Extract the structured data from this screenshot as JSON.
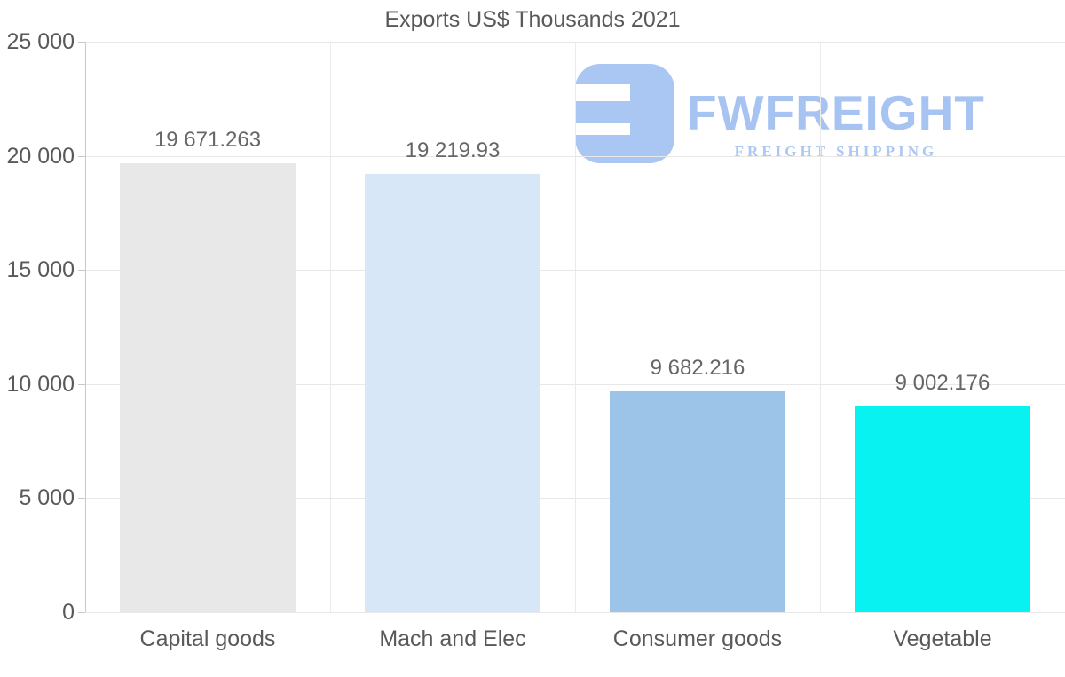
{
  "title": "Exports US$ Thousands 2021",
  "logo": {
    "name": "FWFREIGHT",
    "tagline": "FREIGHT SHIPPING",
    "text_color": "#a6c3f1",
    "icon_color": "#aac6f2"
  },
  "chart_data": {
    "type": "bar",
    "title": "Exports US$ Thousands 2021",
    "categories": [
      "Capital goods",
      "Mach and Elec",
      "Consumer goods",
      "Vegetable"
    ],
    "values": [
      19671.263,
      19219.93,
      9682.216,
      9002.176
    ],
    "value_labels": [
      "19 671.263",
      "19 219.93",
      "9 682.216",
      "9 002.176"
    ],
    "bar_colors": [
      "#e8e8e8",
      "#d8e7f8",
      "#9bc4e8",
      "#08f2f2"
    ],
    "xlabel": "",
    "ylabel": "",
    "ylim": [
      0,
      25000
    ],
    "yticks": [
      0,
      5000,
      10000,
      15000,
      20000,
      25000
    ],
    "ytick_labels": [
      "0",
      "5 000",
      "10 000",
      "15 000",
      "20 000",
      "25 000"
    ],
    "grid": true,
    "legend": false,
    "colors": {
      "gridline": "#e8e8e8",
      "axis": "#c9c9c9",
      "text": "#595959",
      "value_text": "#666666"
    }
  }
}
